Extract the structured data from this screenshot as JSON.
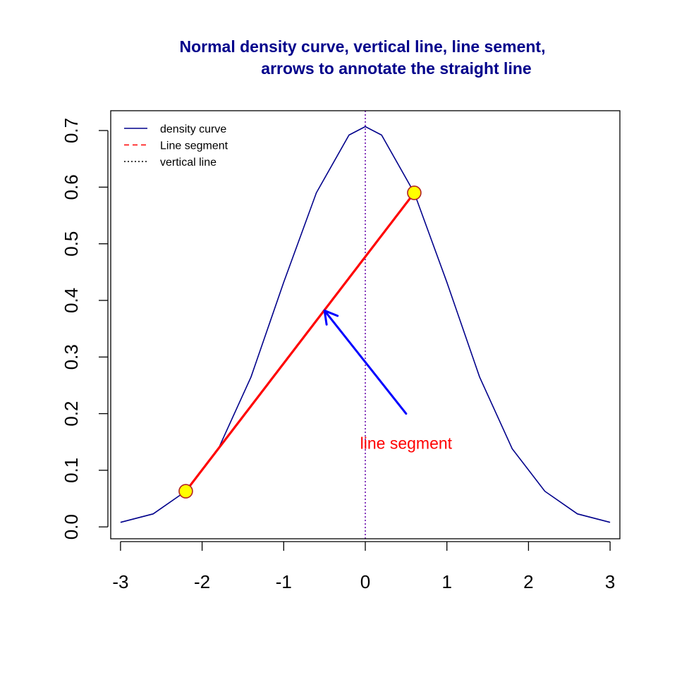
{
  "chart_data": {
    "type": "line",
    "title": "Normal density curve, vertical line, line sement,\n      arrows to annotate the straight line",
    "title_lines": [
      "Normal density curve, vertical line, line sement,",
      "arrows to annotate the straight line"
    ],
    "xlabel": "",
    "ylabel": "",
    "xlim": [
      -3.12,
      3.12
    ],
    "ylim": [
      -0.021,
      0.735
    ],
    "x_ticks": [
      -3,
      -2,
      -1,
      0,
      1,
      2,
      3
    ],
    "x_tick_labels": [
      "-3",
      "-2",
      "-1",
      "0",
      "1",
      "2",
      "3"
    ],
    "y_ticks": [
      0.0,
      0.1,
      0.2,
      0.3,
      0.4,
      0.5,
      0.6,
      0.7
    ],
    "y_tick_labels": [
      "0.0",
      "0.1",
      "0.2",
      "0.3",
      "0.4",
      "0.5",
      "0.6",
      "0.7"
    ],
    "grid": false,
    "legend_position": "top-left",
    "series": [
      {
        "name": "density curve",
        "style": "solid",
        "color": "#00008B",
        "x": [
          -3.0,
          -2.6,
          -2.2,
          -1.8,
          -1.4,
          -1.0,
          -0.6,
          -0.2,
          0.0,
          0.2,
          0.6,
          1.0,
          1.4,
          1.8,
          2.2,
          2.6,
          3.0
        ],
        "y": [
          0.008,
          0.023,
          0.063,
          0.138,
          0.265,
          0.432,
          0.59,
          0.692,
          0.707,
          0.692,
          0.59,
          0.432,
          0.265,
          0.138,
          0.063,
          0.023,
          0.008
        ]
      }
    ],
    "segment": {
      "name": "Line segment",
      "color": "#FF0000",
      "x0": -2.2,
      "y0": 0.063,
      "x1": 0.6,
      "y1": 0.59
    },
    "endpoints": [
      {
        "x": -2.2,
        "y": 0.063
      },
      {
        "x": 0.6,
        "y": 0.59
      }
    ],
    "point_fill": "#FFFF00",
    "point_stroke": "#B22222",
    "vertical_line": {
      "name": "vertical line",
      "x": 0,
      "color": "#6A0DAD",
      "style": "dotted"
    },
    "arrow": {
      "color": "#0000FF",
      "x0": 0.5,
      "y0": 0.2,
      "x1": -0.5,
      "y1": 0.382
    },
    "annotation": {
      "text": "line segment",
      "x": 0.5,
      "y": 0.148,
      "color": "#FF0000"
    },
    "legend": [
      {
        "label": "density curve",
        "color": "#00008B",
        "style": "solid"
      },
      {
        "label": "Line segment",
        "color": "#FF0000",
        "style": "dashed"
      },
      {
        "label": "vertical line",
        "color": "#000000",
        "style": "dotted"
      }
    ]
  }
}
